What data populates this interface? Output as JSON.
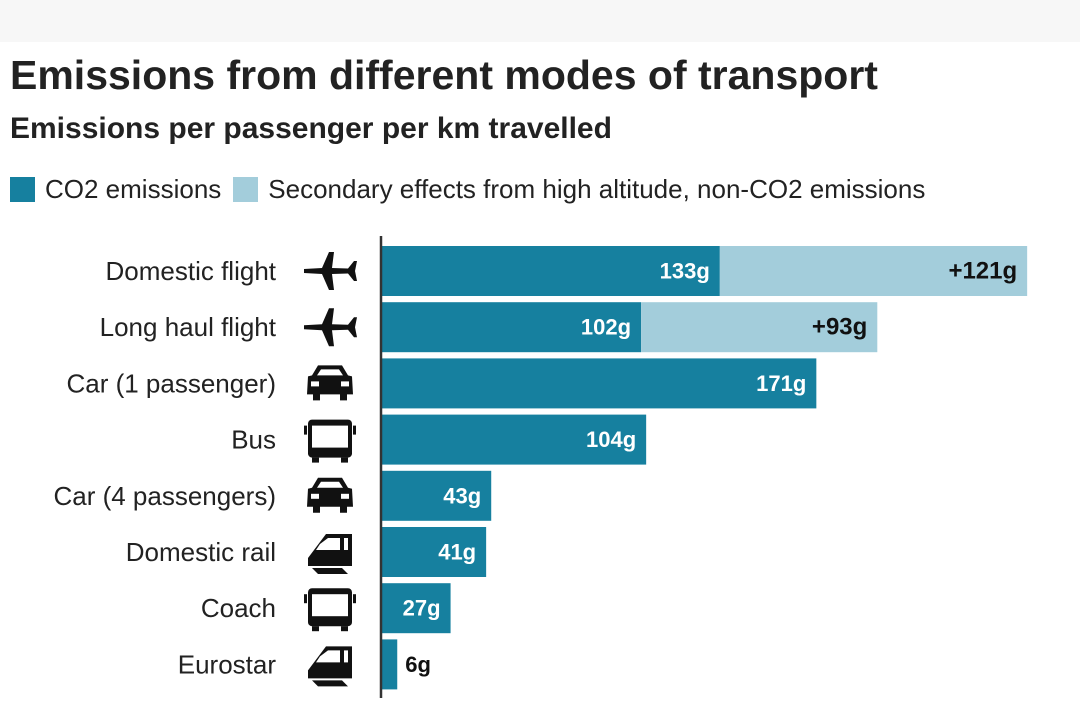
{
  "colors": {
    "co2": "#16809f",
    "secondary": "#a3cddb",
    "axis": "#333333",
    "label_inside": "#ffffff",
    "label_outside": "#111111"
  },
  "chart_data": {
    "type": "bar",
    "orientation": "horizontal",
    "stacked": true,
    "title": "Emissions from different modes of transport",
    "subtitle": "Emissions per passenger per km travelled",
    "units": "g",
    "legend_position": "top-left",
    "grid": false,
    "xlim": [
      0,
      260
    ],
    "categories": [
      "Domestic flight",
      "Long haul flight",
      "Car (1 passenger)",
      "Bus",
      "Car (4 passengers)",
      "Domestic rail",
      "Coach",
      "Eurostar"
    ],
    "icons": [
      "plane-icon",
      "plane-icon",
      "car-icon",
      "bus-icon",
      "car-icon",
      "train-icon",
      "bus-icon",
      "train-icon"
    ],
    "series": [
      {
        "name": "CO2 emissions",
        "values": [
          133,
          102,
          171,
          104,
          43,
          41,
          27,
          6
        ],
        "labels": [
          "133g",
          "102g",
          "171g",
          "104g",
          "43g",
          "41g",
          "27g",
          "6g"
        ]
      },
      {
        "name": "Secondary effects from high altitude, non-CO2 emissions",
        "values": [
          121,
          93,
          0,
          0,
          0,
          0,
          0,
          0
        ],
        "labels": [
          "+121g",
          "+93g",
          "",
          "",
          "",
          "",
          "",
          ""
        ]
      }
    ]
  }
}
